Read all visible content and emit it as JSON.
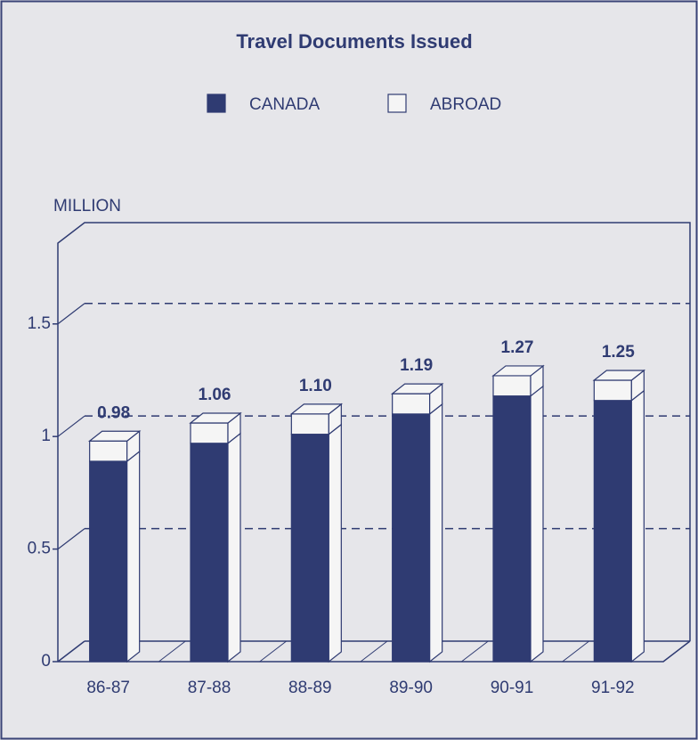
{
  "chart_data": {
    "type": "stacked-bar-3d",
    "title": "Travel Documents Issued",
    "y_label": "MILLION",
    "categories": [
      "86-87",
      "87-88",
      "88-89",
      "89-90",
      "90-91",
      "91-92"
    ],
    "series": [
      {
        "name": "CANADA",
        "color": "#2f3b72",
        "values": [
          0.89,
          0.97,
          1.01,
          1.1,
          1.18,
          1.16
        ]
      },
      {
        "name": "ABROAD",
        "color": "#f5f5f5",
        "values": [
          0.09,
          0.09,
          0.09,
          0.09,
          0.09,
          0.09
        ]
      }
    ],
    "totals": [
      0.98,
      1.06,
      1.1,
      1.19,
      1.27,
      1.25
    ],
    "total_labels": [
      "0.98",
      "1.06",
      "1.10",
      "1.19",
      "1.27",
      "1.25"
    ],
    "ylim": [
      0,
      1.95
    ],
    "yticks": [
      0,
      0.5,
      1,
      1.5
    ],
    "grid": true
  }
}
